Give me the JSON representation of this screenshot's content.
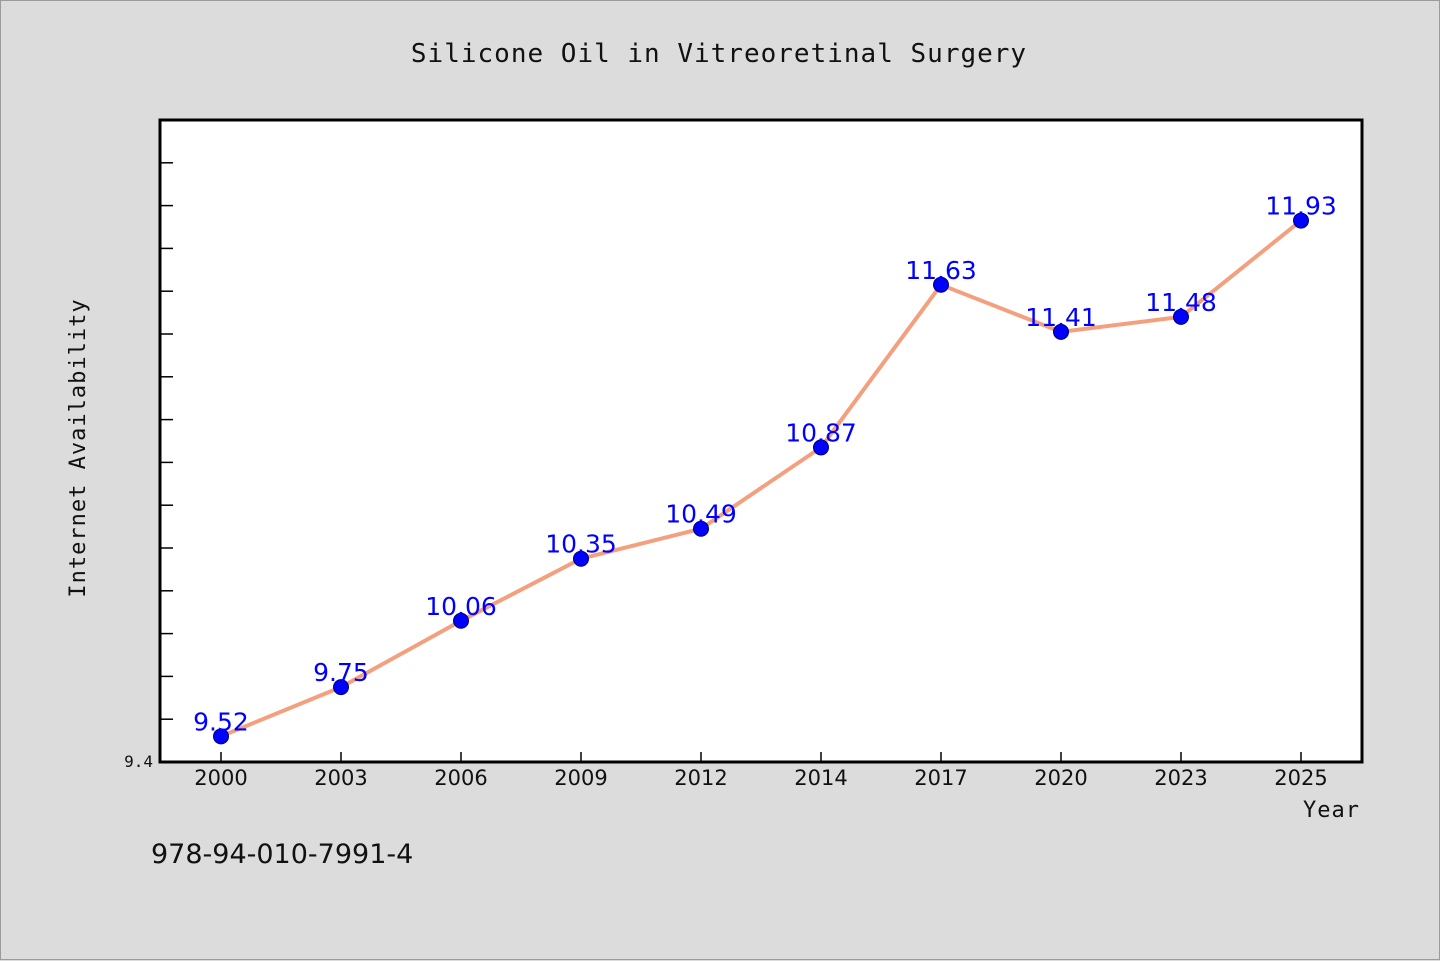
{
  "chart_data": {
    "type": "line",
    "title": "Silicone Oil in Vitreoretinal Surgery",
    "xlabel": "Year",
    "ylabel": "Internet Availability",
    "categories": [
      "2000",
      "2003",
      "2006",
      "2009",
      "2012",
      "2014",
      "2017",
      "2020",
      "2023",
      "2025"
    ],
    "series": [
      {
        "values": [
          9.52,
          9.75,
          10.06,
          10.35,
          10.49,
          10.87,
          11.63,
          11.41,
          11.48,
          11.93
        ],
        "data_labels": [
          "9.52",
          "9.75",
          "10.06",
          "10.35",
          "10.49",
          "10.87",
          "11.63",
          "11.41",
          "11.48",
          "11.93"
        ]
      }
    ],
    "ylim": [
      9.4,
      12.4
    ],
    "y_tick_labels": [
      "9.4"
    ],
    "grid": false,
    "colors": {
      "line": "#f4a07f",
      "marker": "#0000ff",
      "data_label": "#0000ff",
      "background": "#dcdcdc",
      "plot_area": "#ffffff"
    }
  },
  "footer_text": "978-94-010-7991-4"
}
